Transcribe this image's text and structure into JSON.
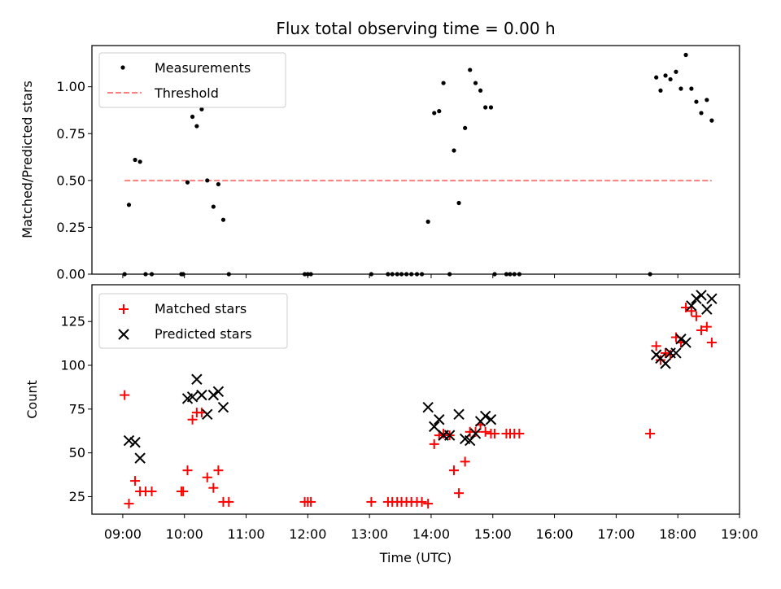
{
  "chart_data": [
    {
      "type": "scatter",
      "title": "Flux total observing time = 0.00 h",
      "xlabel": "",
      "ylabel": "Matched/Predicted stars",
      "xlim": [
        8.5,
        19.0
      ],
      "ylim": [
        0.0,
        1.22
      ],
      "yticks": [
        0.0,
        0.25,
        0.5,
        0.75,
        1.0
      ],
      "ytick_labels": [
        "0.00",
        "0.25",
        "0.50",
        "0.75",
        "1.00"
      ],
      "legend_position": "upper left",
      "series": [
        {
          "name": "Measurements",
          "marker": "dot",
          "color": "#000000",
          "x": [
            9.03,
            9.1,
            9.2,
            9.28,
            9.37,
            9.47,
            9.95,
            9.98,
            10.05,
            10.13,
            10.2,
            10.28,
            10.37,
            10.47,
            10.55,
            10.63,
            10.72,
            11.95,
            12.0,
            12.05,
            13.03,
            13.3,
            13.37,
            13.45,
            13.52,
            13.6,
            13.68,
            13.77,
            13.85,
            13.95,
            14.05,
            14.13,
            14.2,
            14.3,
            14.37,
            14.45,
            14.55,
            14.63,
            14.72,
            14.8,
            14.88,
            14.97,
            15.03,
            15.22,
            15.28,
            15.35,
            15.43,
            17.55,
            17.65,
            17.72,
            17.8,
            17.88,
            17.97,
            18.05,
            18.13,
            18.22,
            18.3,
            18.38,
            18.47,
            18.55
          ],
          "y": [
            0.0,
            0.37,
            0.61,
            0.6,
            0.0,
            0.0,
            0.0,
            0.0,
            0.49,
            0.84,
            0.79,
            0.88,
            0.5,
            0.36,
            0.48,
            0.29,
            0.0,
            0.0,
            0.0,
            0.0,
            0.0,
            0.0,
            0.0,
            0.0,
            0.0,
            0.0,
            0.0,
            0.0,
            0.0,
            0.28,
            0.86,
            0.87,
            1.02,
            0.0,
            0.66,
            0.38,
            0.78,
            1.09,
            1.02,
            0.98,
            0.89,
            0.89,
            0.0,
            0.0,
            0.0,
            0.0,
            0.0,
            0.0,
            1.05,
            0.98,
            1.06,
            1.04,
            1.08,
            0.99,
            1.17,
            0.99,
            0.92,
            0.86,
            0.93,
            0.82
          ]
        },
        {
          "name": "Threshold",
          "marker": "dashed-line",
          "color": "#ff7f7f",
          "x": [
            9.03,
            18.55
          ],
          "y": [
            0.5,
            0.5
          ]
        }
      ]
    },
    {
      "type": "scatter",
      "title": "",
      "xlabel": "Time (UTC)",
      "ylabel": "Count",
      "xlim": [
        8.5,
        19.0
      ],
      "ylim": [
        15,
        146
      ],
      "yticks": [
        25,
        50,
        75,
        100,
        125
      ],
      "ytick_labels": [
        "25",
        "50",
        "75",
        "100",
        "125"
      ],
      "xticks": [
        9,
        10,
        11,
        12,
        13,
        14,
        15,
        16,
        17,
        18,
        19
      ],
      "xtick_labels": [
        "09:00",
        "10:00",
        "11:00",
        "12:00",
        "13:00",
        "14:00",
        "15:00",
        "16:00",
        "17:00",
        "18:00",
        "19:00"
      ],
      "legend_position": "upper left",
      "series": [
        {
          "name": "Matched stars",
          "marker": "plus",
          "color": "#ff0000",
          "x": [
            9.03,
            9.1,
            9.2,
            9.28,
            9.37,
            9.47,
            9.95,
            9.98,
            10.05,
            10.13,
            10.2,
            10.28,
            10.37,
            10.47,
            10.55,
            10.63,
            10.72,
            11.95,
            12.0,
            12.05,
            13.03,
            13.3,
            13.37,
            13.45,
            13.52,
            13.6,
            13.68,
            13.77,
            13.85,
            13.95,
            14.05,
            14.13,
            14.2,
            14.3,
            14.37,
            14.45,
            14.55,
            14.63,
            14.72,
            14.8,
            14.88,
            14.97,
            15.03,
            15.22,
            15.28,
            15.35,
            15.43,
            17.55,
            17.65,
            17.72,
            17.8,
            17.88,
            17.97,
            18.05,
            18.13,
            18.22,
            18.3,
            18.38,
            18.47,
            18.55
          ],
          "y": [
            83,
            21,
            34,
            28,
            28,
            28,
            28,
            28,
            40,
            69,
            73,
            73,
            36,
            30,
            40,
            22,
            22,
            22,
            22,
            22,
            22,
            22,
            22,
            22,
            22,
            22,
            22,
            22,
            22,
            21,
            55,
            60,
            61,
            60,
            40,
            27,
            45,
            62,
            62,
            66,
            62,
            61,
            61,
            61,
            61,
            61,
            61,
            61,
            111,
            103,
            107,
            106,
            116,
            113,
            133,
            131,
            128,
            120,
            122,
            113
          ]
        },
        {
          "name": "Predicted stars",
          "marker": "x",
          "color": "#000000",
          "x": [
            9.1,
            9.2,
            9.28,
            10.05,
            10.13,
            10.2,
            10.28,
            10.37,
            10.47,
            10.55,
            10.63,
            13.95,
            14.05,
            14.13,
            14.2,
            14.3,
            14.45,
            14.55,
            14.63,
            14.72,
            14.8,
            14.88,
            14.97,
            17.65,
            17.72,
            17.8,
            17.88,
            17.97,
            18.05,
            18.13,
            18.22,
            18.3,
            18.38,
            18.47,
            18.55
          ],
          "y": [
            57,
            56,
            47,
            81,
            82,
            92,
            83,
            72,
            83,
            85,
            76,
            76,
            65,
            69,
            60,
            60,
            72,
            58,
            57,
            61,
            68,
            71,
            69,
            106,
            104,
            101,
            107,
            107,
            115,
            113,
            134,
            138,
            140,
            132,
            138
          ]
        }
      ]
    }
  ]
}
